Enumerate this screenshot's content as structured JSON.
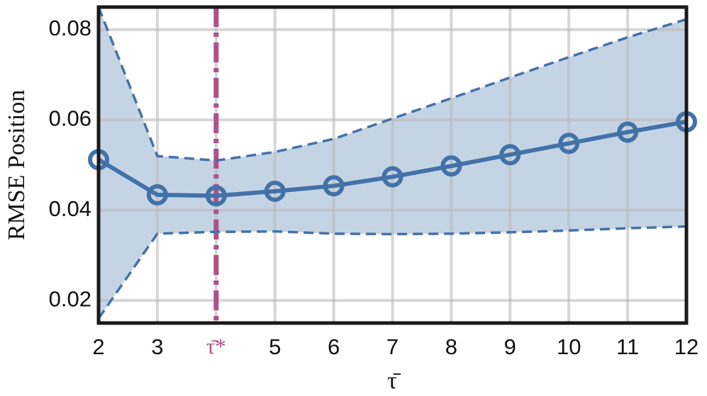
{
  "chart_data": {
    "type": "line",
    "xlabel": "τ̄",
    "ylabel": "RMSE Position",
    "x": [
      2,
      3,
      4,
      5,
      6,
      7,
      8,
      9,
      10,
      11,
      12
    ],
    "series": [
      {
        "color": "#4372a8",
        "values": [
          0.0512,
          0.0434,
          0.0432,
          0.0442,
          0.0454,
          0.0474,
          0.0498,
          0.0523,
          0.0548,
          0.0573,
          0.0596
        ]
      }
    ],
    "upper": [
      0.085,
      0.052,
      0.051,
      0.0529,
      0.0558,
      0.0603,
      0.0648,
      0.0694,
      0.0739,
      0.0783,
      0.0823
    ],
    "lower": [
      0.016,
      0.0348,
      0.0352,
      0.0353,
      0.0348,
      0.0347,
      0.0348,
      0.0351,
      0.0355,
      0.036,
      0.0364
    ],
    "band_color": "#c5d4e5",
    "marker_x": 4,
    "marker_color": "#b0508a",
    "xlim": [
      2,
      12
    ],
    "xticks": [
      2,
      3,
      {
        "value": 4,
        "label": "τ̄*"
      },
      5,
      6,
      7,
      8,
      9,
      10,
      11,
      12
    ],
    "ylim": [
      0.015,
      0.085
    ],
    "yticks": [
      0.02,
      0.04,
      0.06,
      0.08
    ],
    "grid": true
  }
}
